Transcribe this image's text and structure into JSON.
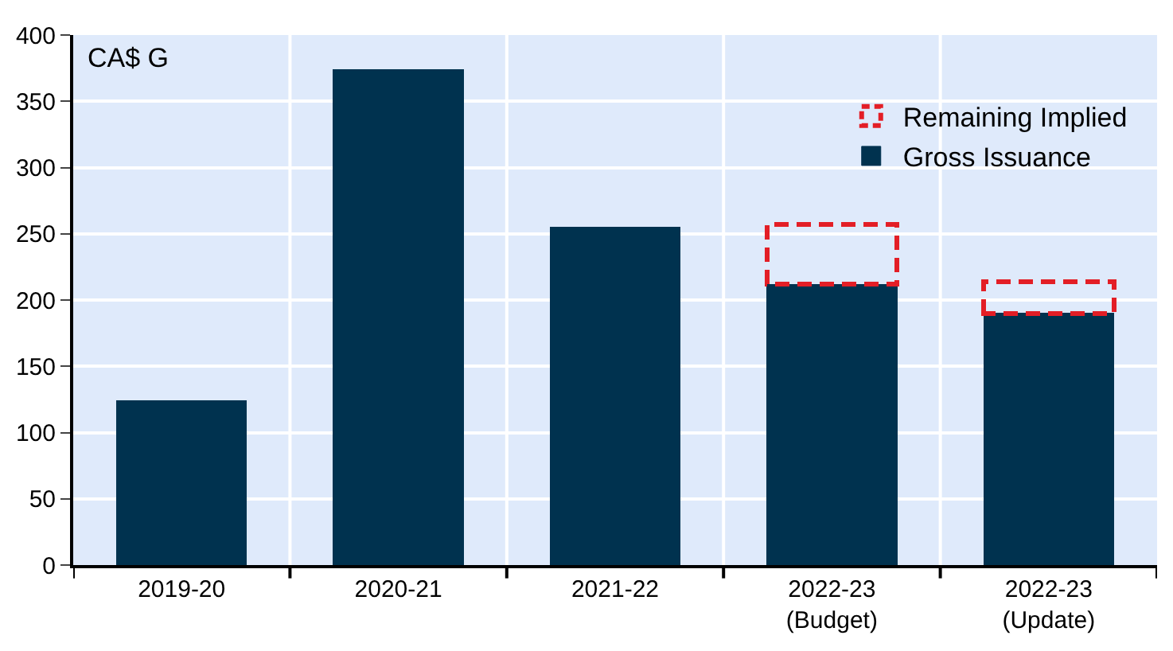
{
  "chart_data": {
    "type": "bar",
    "stacked": true,
    "categories": [
      "2019-20",
      "2020-21",
      "2021-22",
      "2022-23\n(Budget)",
      "2022-23\n(Update)"
    ],
    "series": [
      {
        "name": "Gross Issuance",
        "color": "#00324f",
        "values": [
          124,
          374,
          255,
          212,
          190
        ]
      },
      {
        "name": "Remaining Implied",
        "color": "#e31e26",
        "line_style": "dashed",
        "values": [
          null,
          null,
          null,
          45,
          24
        ]
      }
    ],
    "ylim": [
      0,
      400
    ],
    "yticks": [
      0,
      50,
      100,
      150,
      200,
      250,
      300,
      350,
      400
    ],
    "annotations": [
      "CA$ G"
    ],
    "grid": true,
    "legend": "top right"
  }
}
